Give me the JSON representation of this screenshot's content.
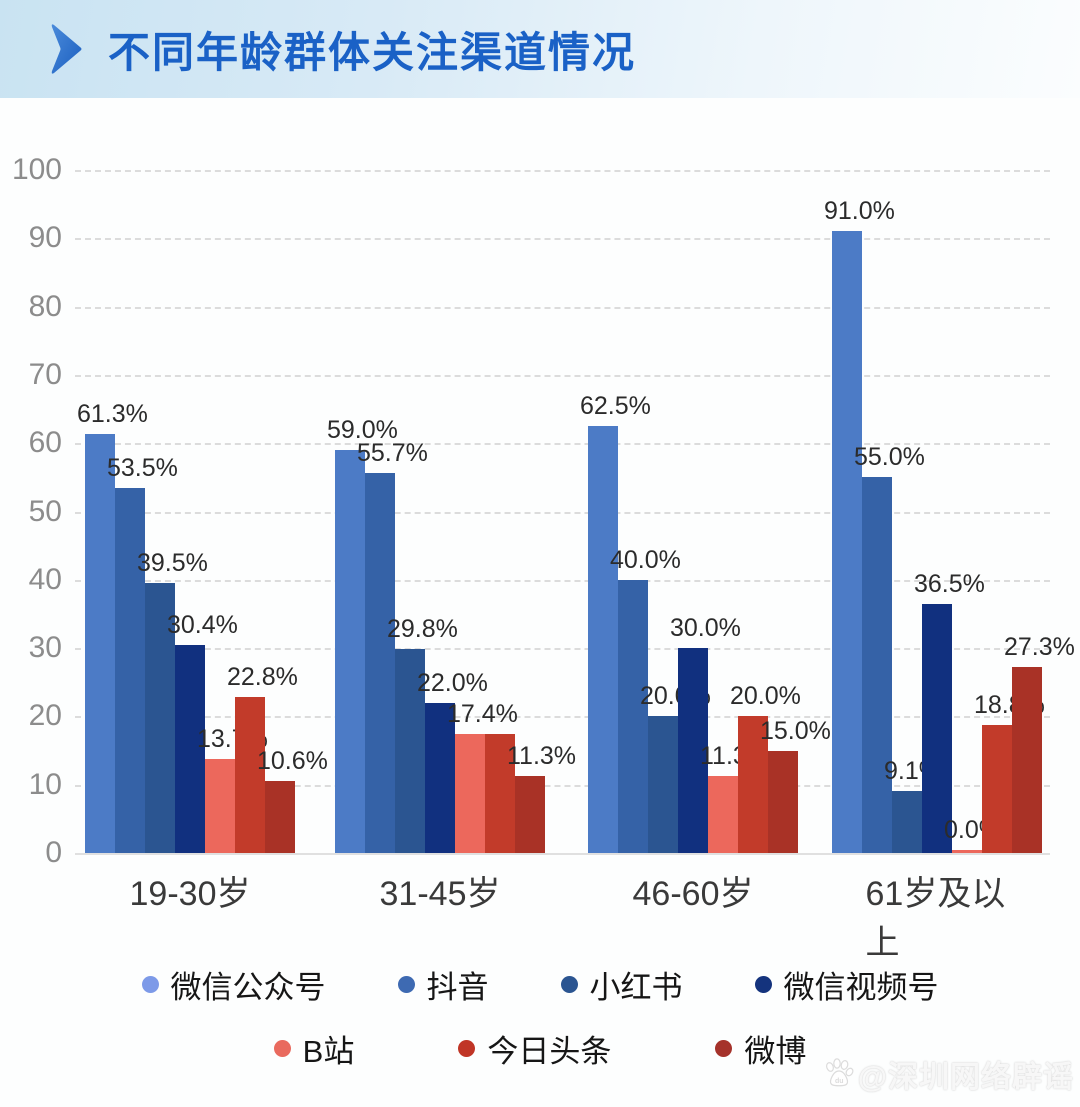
{
  "header": {
    "title": "不同年龄群体关注渠道情况"
  },
  "watermark": {
    "icon": "baidu-paw-icon",
    "text": "@深圳网络辟谣"
  },
  "chart_data": {
    "type": "bar",
    "title": "不同年龄群体关注渠道情况",
    "categories": [
      "19-30岁",
      "31-45岁",
      "46-60岁",
      "61岁及以上"
    ],
    "series": [
      {
        "name": "微信公众号",
        "color": "#4c7bc6",
        "dot_color": "#7d9ae8",
        "values": [
          61.3,
          59.0,
          62.5,
          91.0
        ],
        "labels": [
          "61.3%",
          "59.0%",
          "62.5%",
          "91.0%"
        ]
      },
      {
        "name": "抖音",
        "color": "#3562a7",
        "dot_color": "#3e6ab2",
        "values": [
          53.5,
          55.7,
          40.0,
          55.0
        ],
        "labels": [
          "53.5%",
          "55.7%",
          "40.0%",
          "55.0%"
        ]
      },
      {
        "name": "小红书",
        "color": "#2b5591",
        "dot_color": "#2b5591",
        "values": [
          39.5,
          29.8,
          20.0,
          9.1
        ],
        "labels": [
          "39.5%",
          "29.8%",
          "20.0%",
          "9.1%"
        ]
      },
      {
        "name": "微信视频号",
        "color": "#11307f",
        "dot_color": "#14337d",
        "values": [
          30.4,
          22.0,
          30.0,
          36.5
        ],
        "labels": [
          "30.4%",
          "22.0%",
          "30.0%",
          "36.5%"
        ]
      },
      {
        "name": "B站",
        "color": "#ec685c",
        "dot_color": "#e96a5e",
        "values": [
          13.7,
          17.4,
          11.3,
          0.0
        ],
        "labels": [
          "13.7%",
          "17.4%",
          "11.3%",
          "0.0%"
        ]
      },
      {
        "name": "今日头条",
        "color": "#c23b2a",
        "dot_color": "#c03526",
        "values": [
          22.8,
          17.4,
          20.0,
          18.8
        ],
        "labels": [
          "22.8%",
          "",
          "20.0%",
          "18.8%"
        ]
      },
      {
        "name": "微博",
        "color": "#a93226",
        "dot_color": "#a5322b",
        "values": [
          10.6,
          11.3,
          15.0,
          27.3
        ],
        "labels": [
          "10.6%",
          "11.3%",
          "15.0%",
          "27.3%"
        ]
      }
    ],
    "ylim": [
      0,
      100
    ],
    "yticks": [
      0,
      10,
      20,
      30,
      40,
      50,
      60,
      70,
      80,
      90,
      100
    ],
    "grid": "horizontal-dashed",
    "legend_position": "bottom",
    "legend_rows": [
      [
        "微信公众号",
        "抖音",
        "小红书",
        "微信视频号"
      ],
      [
        "B站",
        "今日头条",
        "微博"
      ]
    ],
    "value_label_suffix": "%"
  }
}
